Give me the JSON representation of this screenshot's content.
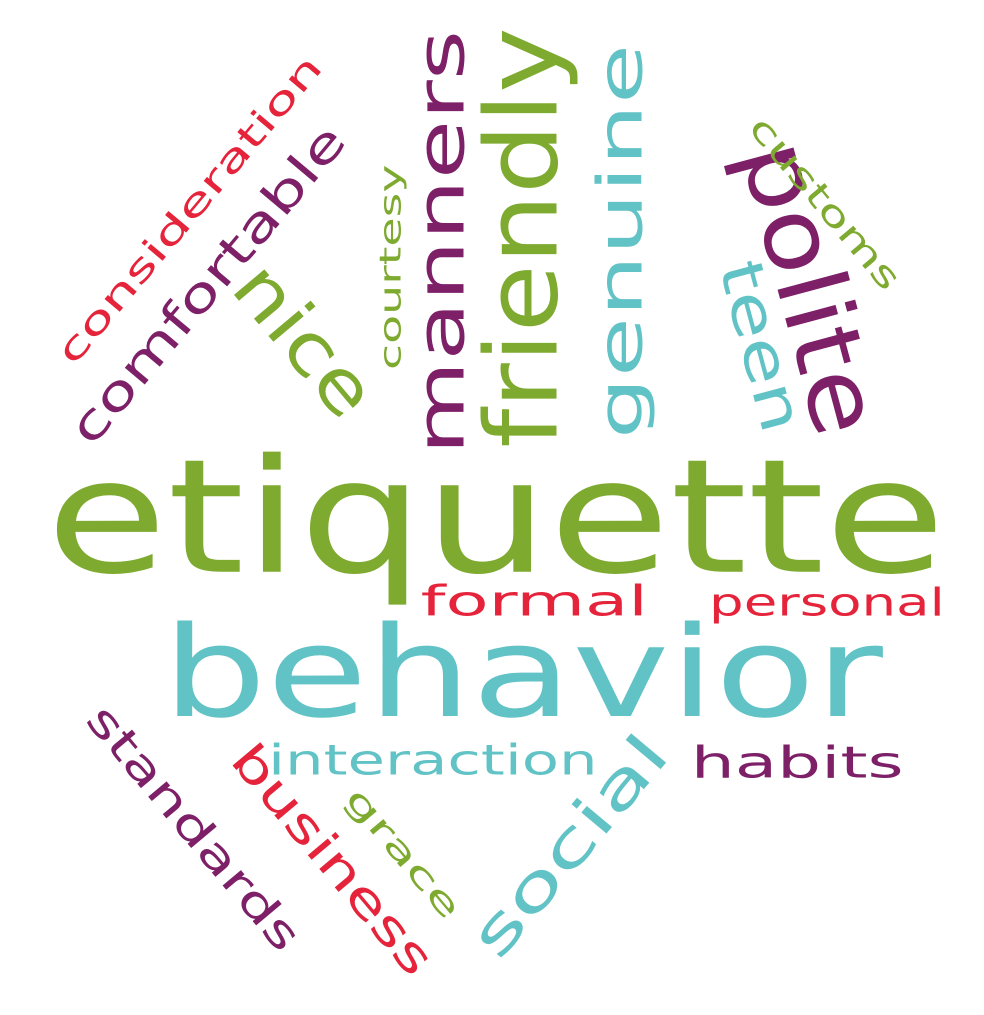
{
  "colors": {
    "green": "#7daa2f",
    "teal": "#62c3c6",
    "purple": "#7d2067",
    "red": "#e5243b"
  },
  "words": [
    {
      "key": "etiquette",
      "text": "etiquette",
      "color": "green"
    },
    {
      "key": "behavior",
      "text": "behavior",
      "color": "teal"
    },
    {
      "key": "polite",
      "text": "polite",
      "color": "purple"
    },
    {
      "key": "friendly",
      "text": "friendly",
      "color": "green"
    },
    {
      "key": "manners",
      "text": "manners",
      "color": "purple"
    },
    {
      "key": "genuine",
      "text": "genuine",
      "color": "teal"
    },
    {
      "key": "nice",
      "text": "nice",
      "color": "green"
    },
    {
      "key": "comfortable",
      "text": "comfortable",
      "color": "purple"
    },
    {
      "key": "consideration",
      "text": "consideration",
      "color": "red"
    },
    {
      "key": "courtesy",
      "text": "courtesy",
      "color": "green"
    },
    {
      "key": "customs",
      "text": "customs",
      "color": "green"
    },
    {
      "key": "teen",
      "text": "teen",
      "color": "teal"
    },
    {
      "key": "formal",
      "text": "formal",
      "color": "red"
    },
    {
      "key": "personal",
      "text": "personal",
      "color": "red"
    },
    {
      "key": "interaction",
      "text": "interaction",
      "color": "teal"
    },
    {
      "key": "habits",
      "text": "habits",
      "color": "purple"
    },
    {
      "key": "social",
      "text": "social",
      "color": "teal"
    },
    {
      "key": "standards",
      "text": "standards",
      "color": "purple"
    },
    {
      "key": "business",
      "text": "business",
      "color": "red"
    },
    {
      "key": "grace",
      "text": "grace",
      "color": "green"
    }
  ]
}
